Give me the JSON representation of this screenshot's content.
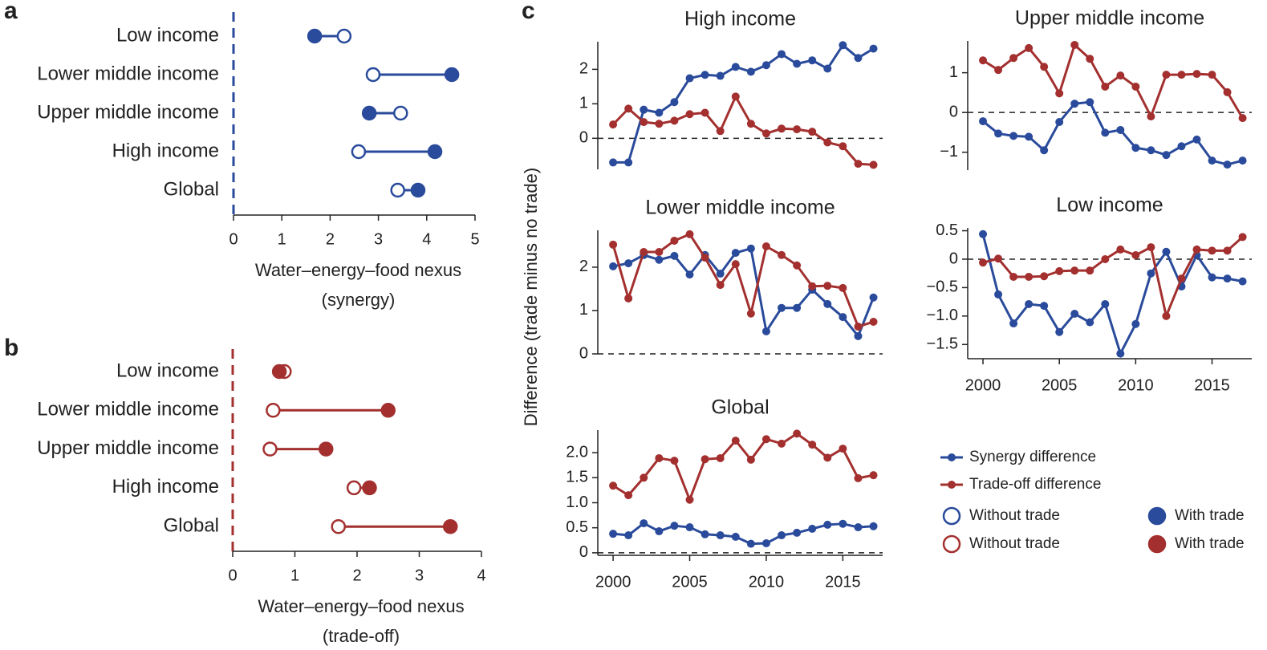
{
  "chart_data": [
    {
      "type": "dumbbell",
      "panel_label": "a",
      "categories": [
        "Low income",
        "Lower middle income",
        "Upper middle income",
        "High income",
        "Global"
      ],
      "series": [
        {
          "name": "Without trade",
          "color": "#2a4b9b",
          "marker": "open",
          "values": [
            2.29,
            2.89,
            3.46,
            2.59,
            3.4
          ]
        },
        {
          "name": "With trade",
          "color": "#2a4b9b",
          "marker": "filled",
          "values": [
            1.68,
            4.52,
            2.81,
            4.17,
            3.82
          ]
        }
      ],
      "xlim": [
        0,
        5
      ],
      "xticks": [
        0,
        1,
        2,
        3,
        4,
        5
      ],
      "xlabel": [
        "Water–energy–food nexus",
        "(synergy)"
      ]
    },
    {
      "type": "dumbbell",
      "panel_label": "b",
      "categories": [
        "Low income",
        "Lower middle income",
        "Upper middle income",
        "High income",
        "Global"
      ],
      "series": [
        {
          "name": "Without trade",
          "color": "#a3302f",
          "marker": "open",
          "values": [
            0.83,
            0.65,
            0.6,
            1.95,
            1.7
          ]
        },
        {
          "name": "With trade",
          "color": "#a3302f",
          "marker": "filled",
          "values": [
            0.75,
            2.5,
            1.5,
            2.2,
            3.5
          ]
        }
      ],
      "xlim": [
        0,
        4
      ],
      "xticks": [
        0,
        1,
        2,
        3,
        4
      ],
      "xlabel": [
        "Water–energy–food nexus",
        "(trade-off)"
      ]
    },
    {
      "type": "line",
      "panel_label": "c",
      "title": "High income",
      "ylabel": "Difference (trade minus no trade)",
      "x": [
        2000,
        2001,
        2002,
        2003,
        2004,
        2005,
        2006,
        2007,
        2008,
        2009,
        2010,
        2011,
        2012,
        2013,
        2014,
        2015,
        2016,
        2017
      ],
      "series": [
        {
          "name": "Synergy difference",
          "color": "#2a4b9b",
          "values": [
            -0.7,
            -0.7,
            0.83,
            0.74,
            1.05,
            1.74,
            1.84,
            1.81,
            2.07,
            1.93,
            2.12,
            2.44,
            2.16,
            2.26,
            2.02,
            2.7,
            2.33,
            2.6
          ]
        },
        {
          "name": "Trade-off difference",
          "color": "#a3302f",
          "values": [
            0.4,
            0.86,
            0.47,
            0.42,
            0.51,
            0.7,
            0.74,
            0.21,
            1.21,
            0.42,
            0.14,
            0.28,
            0.26,
            0.19,
            -0.12,
            -0.23,
            -0.74,
            -0.77
          ]
        }
      ],
      "xlim": [
        1999,
        2017.6
      ],
      "xticks": [
        2000,
        2005,
        2010,
        2015
      ],
      "show_xaxis": false,
      "ylim": [
        -0.9,
        2.8
      ],
      "yticks": [
        0,
        1,
        2
      ]
    },
    {
      "type": "line",
      "title": "Upper middle income",
      "x": [
        2000,
        2001,
        2002,
        2003,
        2004,
        2005,
        2006,
        2007,
        2008,
        2009,
        2010,
        2011,
        2012,
        2013,
        2014,
        2015,
        2016,
        2017
      ],
      "series": [
        {
          "color": "#2a4b9b",
          "values": [
            -0.22,
            -0.53,
            -0.59,
            -0.61,
            -0.95,
            -0.24,
            0.22,
            0.26,
            -0.51,
            -0.44,
            -0.89,
            -0.95,
            -1.07,
            -0.85,
            -0.68,
            -1.21,
            -1.31,
            -1.21
          ]
        },
        {
          "color": "#a3302f",
          "values": [
            1.31,
            1.07,
            1.37,
            1.62,
            1.15,
            0.48,
            1.7,
            1.35,
            0.65,
            0.93,
            0.65,
            -0.1,
            0.95,
            0.95,
            0.97,
            0.95,
            0.51,
            -0.14
          ]
        }
      ],
      "xlim": [
        1999,
        2017.6
      ],
      "xticks": [
        2000,
        2005,
        2010,
        2015
      ],
      "show_xaxis": false,
      "ylim": [
        -1.45,
        1.8
      ],
      "yticks": [
        {
          "value": -1,
          "label": "−1"
        },
        0,
        1
      ]
    },
    {
      "type": "line",
      "title": "Lower middle income",
      "x": [
        2000,
        2001,
        2002,
        2003,
        2004,
        2005,
        2006,
        2007,
        2008,
        2009,
        2010,
        2011,
        2012,
        2013,
        2014,
        2015,
        2016,
        2017
      ],
      "series": [
        {
          "color": "#2a4b9b",
          "values": [
            2.02,
            2.09,
            2.28,
            2.17,
            2.26,
            1.83,
            2.28,
            1.85,
            2.33,
            2.43,
            0.52,
            1.06,
            1.06,
            1.48,
            1.15,
            0.85,
            0.41,
            1.3
          ]
        },
        {
          "color": "#a3302f",
          "values": [
            2.52,
            1.28,
            2.35,
            2.35,
            2.61,
            2.76,
            2.22,
            1.59,
            2.07,
            0.93,
            2.48,
            2.28,
            2.04,
            1.56,
            1.57,
            1.52,
            0.63,
            0.74
          ]
        }
      ],
      "xlim": [
        1999,
        2017.6
      ],
      "xticks": [
        2000,
        2005,
        2010,
        2015
      ],
      "show_xaxis": false,
      "ylim": [
        0,
        2.85
      ],
      "yticks": [
        0,
        1,
        2
      ]
    },
    {
      "type": "line",
      "title": "Low income",
      "x": [
        2000,
        2001,
        2002,
        2003,
        2004,
        2005,
        2006,
        2007,
        2008,
        2009,
        2010,
        2011,
        2012,
        2013,
        2014,
        2015,
        2016,
        2017
      ],
      "series": [
        {
          "color": "#2a4b9b",
          "values": [
            0.44,
            -0.62,
            -1.13,
            -0.79,
            -0.82,
            -1.28,
            -0.96,
            -1.11,
            -0.79,
            -1.66,
            -1.14,
            -0.25,
            0.13,
            -0.48,
            0.07,
            -0.32,
            -0.34,
            -0.39
          ]
        },
        {
          "color": "#a3302f",
          "values": [
            -0.06,
            0.01,
            -0.31,
            -0.31,
            -0.3,
            -0.21,
            -0.2,
            -0.2,
            0,
            0.17,
            0.07,
            0.21,
            -1.0,
            -0.34,
            0.17,
            0.15,
            0.15,
            0.39
          ]
        }
      ],
      "xlim": [
        1999,
        2017.6
      ],
      "xticks": [
        2000,
        2005,
        2010,
        2015
      ],
      "show_xaxis": true,
      "ylim": [
        -1.75,
        0.55
      ],
      "yticks": [
        {
          "value": -1.5,
          "label": "−1.5"
        },
        {
          "value": -1,
          "label": "−1.0"
        },
        {
          "value": -0.5,
          "label": "−0.5"
        },
        0,
        0.5
      ]
    },
    {
      "type": "line",
      "title": "Global",
      "x": [
        2000,
        2001,
        2002,
        2003,
        2004,
        2005,
        2006,
        2007,
        2008,
        2009,
        2010,
        2011,
        2012,
        2013,
        2014,
        2015,
        2016,
        2017
      ],
      "series": [
        {
          "color": "#2a4b9b",
          "values": [
            0.38,
            0.35,
            0.59,
            0.43,
            0.54,
            0.51,
            0.37,
            0.35,
            0.32,
            0.18,
            0.19,
            0.35,
            0.4,
            0.48,
            0.56,
            0.58,
            0.51,
            0.53
          ]
        },
        {
          "color": "#a3302f",
          "values": [
            1.34,
            1.15,
            1.5,
            1.89,
            1.84,
            1.06,
            1.87,
            1.89,
            2.24,
            1.86,
            2.27,
            2.18,
            2.38,
            2.16,
            1.9,
            2.08,
            1.49,
            1.55
          ]
        }
      ],
      "xlim": [
        1999,
        2017.6
      ],
      "xticks": [
        2000,
        2005,
        2010,
        2015
      ],
      "show_xaxis": true,
      "ylim": [
        -0.05,
        2.45
      ],
      "yticks": [
        0,
        0.5,
        {
          "value": 1,
          "label": "1.0"
        },
        1.5,
        {
          "value": 2,
          "label": "2.0"
        }
      ]
    }
  ]
}
